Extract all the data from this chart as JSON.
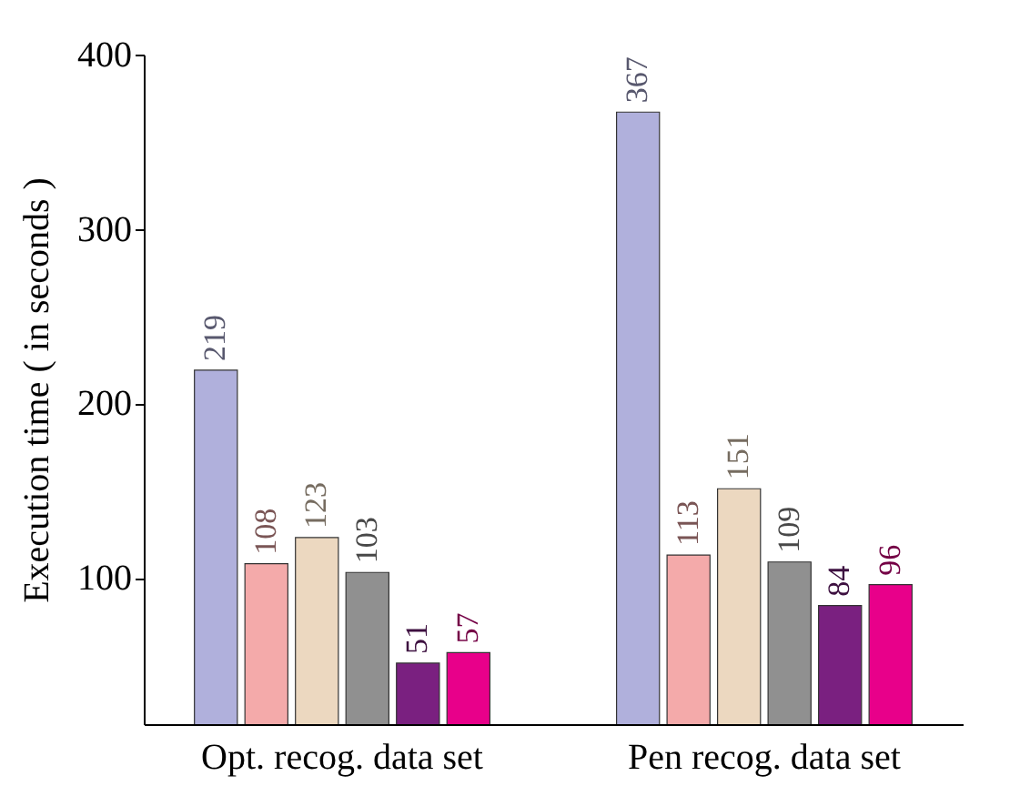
{
  "chart_data": {
    "type": "bar",
    "ylabel": "Execution time ( in seconds )",
    "categories": [
      "Opt. recog. data set",
      "Pen recog. data set"
    ],
    "series": [
      {
        "color": "#b0b0dc",
        "values": [
          219,
          367
        ]
      },
      {
        "color": "#f4aaaa",
        "values": [
          108,
          113
        ]
      },
      {
        "color": "#ecd8c0",
        "values": [
          123,
          151
        ]
      },
      {
        "color": "#909090",
        "values": [
          103,
          109
        ]
      },
      {
        "color": "#7a2080",
        "values": [
          51,
          84
        ]
      },
      {
        "color": "#e8008a",
        "values": [
          57,
          96
        ]
      }
    ],
    "ylim": [
      16,
      400
    ],
    "yticks": [
      100,
      200,
      300,
      400
    ],
    "data_labels": true
  }
}
